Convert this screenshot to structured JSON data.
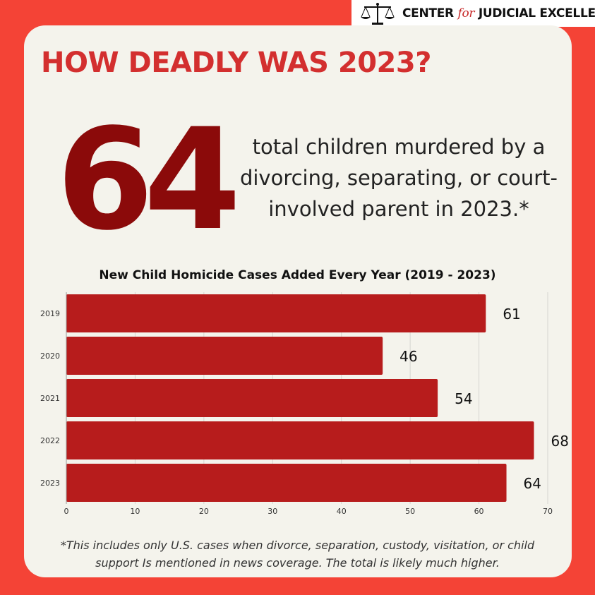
{
  "brand": {
    "name_part1": "CENTER",
    "name_for": "for",
    "name_part2": "JUDICIAL EXCELLENCE",
    "icon": "scales-of-justice-icon"
  },
  "headline": "HOW DEADLY WAS 2023?",
  "stat": {
    "number": "64",
    "description": "total children murdered by a divorcing, separating, or court-involved parent in 2023.*"
  },
  "footnote": "*This includes only U.S. cases when divorce, separation, custody, visitation, or child support Is mentioned in news coverage. The total is likely much higher.",
  "colors": {
    "background": "#f44336",
    "card": "#f4f3ec",
    "headline": "#d32f2f",
    "big_number": "#8b0a0a",
    "bar": "#b71c1c"
  },
  "chart_data": {
    "type": "bar",
    "orientation": "horizontal",
    "title": "New Child Homicide Cases Added Every Year (2019 - 2023)",
    "categories": [
      "2019",
      "2020",
      "2021",
      "2022",
      "2023"
    ],
    "values": [
      61,
      46,
      54,
      68,
      64
    ],
    "data_labels": [
      "61",
      "46",
      "54",
      "68",
      "64"
    ],
    "xlim": [
      0,
      70
    ],
    "x_ticks": [
      "0",
      "10",
      "20",
      "30",
      "40",
      "50",
      "60",
      "70"
    ],
    "grid": true,
    "legend": "none",
    "xlabel": "",
    "ylabel": ""
  }
}
